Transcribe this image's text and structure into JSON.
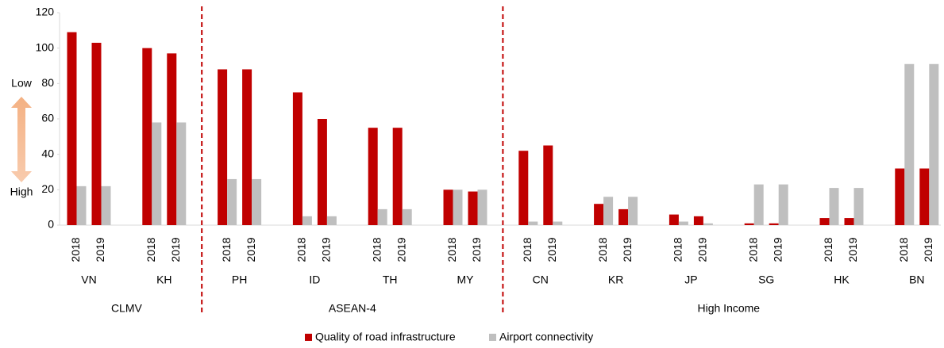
{
  "chart_data": {
    "type": "bar",
    "categories": [
      "2018",
      "2019",
      "2018",
      "2019",
      "2018",
      "2019",
      "2018",
      "2019",
      "2018",
      "2019",
      "2018",
      "2019",
      "2018",
      "2019",
      "2018",
      "2019",
      "2018",
      "2019",
      "2018",
      "2019",
      "2018",
      "2019",
      "2018",
      "2019"
    ],
    "groups": [
      {
        "name": "CLMV",
        "countries": [
          "VN",
          "KH"
        ]
      },
      {
        "name": "ASEAN-4",
        "countries": [
          "PH",
          "ID",
          "TH",
          "MY"
        ]
      },
      {
        "name": "High Income",
        "countries": [
          "CN",
          "KR",
          "JP",
          "SG",
          "HK",
          "BN"
        ]
      }
    ],
    "series": [
      {
        "name": "Quality of road infrastructure",
        "color": "#c00000",
        "values": [
          109,
          103,
          100,
          97,
          88,
          88,
          75,
          60,
          55,
          55,
          20,
          19,
          42,
          45,
          12,
          9,
          6,
          5,
          1,
          1,
          4,
          4,
          32,
          32
        ]
      },
      {
        "name": "Airport connectivity",
        "color": "#bfbfbf",
        "values": [
          22,
          22,
          58,
          58,
          26,
          26,
          5,
          5,
          9,
          9,
          20,
          20,
          2,
          2,
          16,
          16,
          2,
          1,
          23,
          23,
          21,
          21,
          91,
          91
        ]
      }
    ],
    "annotations": [
      "Low",
      "High"
    ],
    "ylim": [
      0,
      120
    ],
    "yticks": [
      0,
      20,
      40,
      60,
      80,
      100,
      120
    ],
    "grid": false,
    "legend": "bottom"
  }
}
